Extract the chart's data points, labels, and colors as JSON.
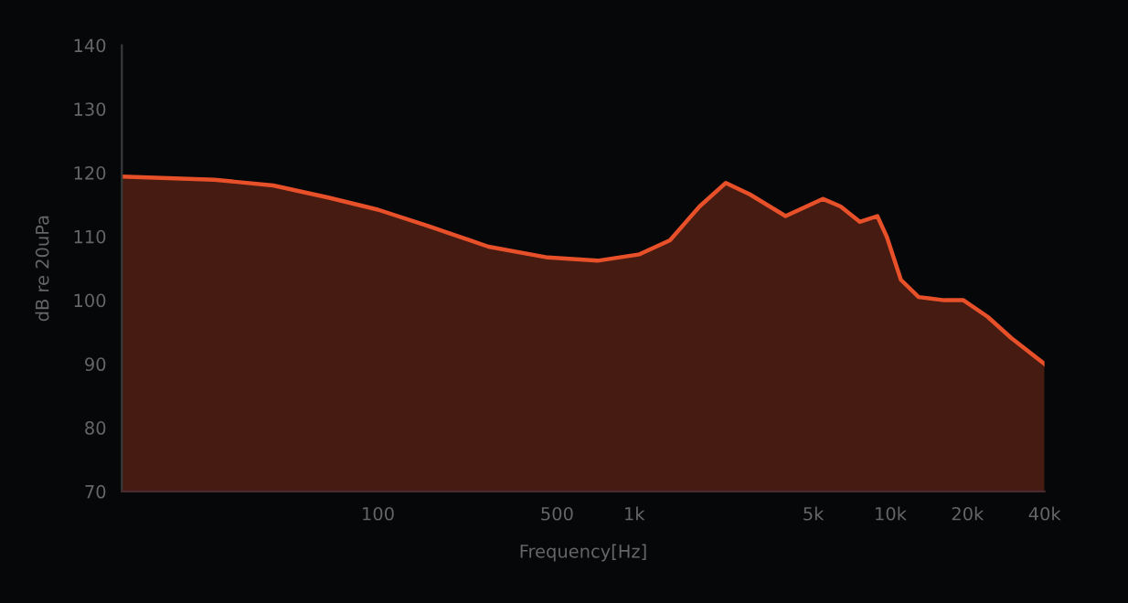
{
  "chart_data": {
    "type": "area",
    "xlabel": "Frequency[Hz]",
    "ylabel": "dB re 20uPa",
    "log": "x",
    "grid": false,
    "legend": false,
    "xlim": [
      10,
      40000
    ],
    "ylim": [
      70,
      140
    ],
    "xticks": [
      100,
      500,
      {
        "value": 1000,
        "label": "1k"
      },
      {
        "value": 5000,
        "label": "5k"
      },
      {
        "value": 10000,
        "label": "10k"
      },
      {
        "value": 20000,
        "label": "20k"
      },
      {
        "value": 40000,
        "label": "40k"
      }
    ],
    "yticks": [
      70,
      80,
      90,
      100,
      110,
      120,
      130,
      140
    ],
    "series": [
      {
        "color": "#e8502a",
        "x": [
          10,
          23,
          39,
          64,
          100,
          158,
          270,
          460,
          720,
          1050,
          1380,
          1800,
          2280,
          2830,
          3900,
          5450,
          6400,
          7600,
          8900,
          9700,
          11000,
          12900,
          16200,
          19300,
          24000,
          29600,
          40000
        ],
        "values": [
          119.4,
          118.9,
          118.0,
          116.1,
          114.2,
          111.6,
          108.4,
          106.7,
          106.2,
          107.2,
          109.4,
          114.7,
          118.4,
          116.6,
          113.2,
          115.9,
          114.7,
          112.3,
          113.2,
          109.9,
          103.2,
          100.5,
          100.0,
          100.0,
          97.4,
          94.1,
          90.0
        ]
      }
    ]
  }
}
